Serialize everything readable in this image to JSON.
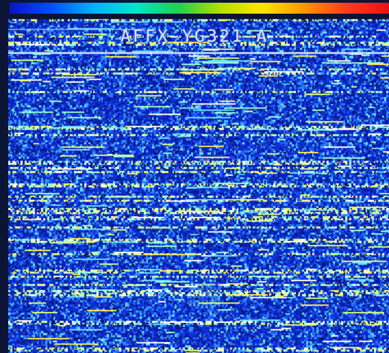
{
  "image": {
    "label": "AFFX-YG321-A",
    "colorbar_colors": [
      "#0a14c8",
      "#0050ff",
      "#00b4ff",
      "#00e6c8",
      "#20d050",
      "#b4e000",
      "#ffe600",
      "#ff9600",
      "#ff3a1e",
      "#e61414"
    ],
    "background_color": "#0c1a8c"
  }
}
